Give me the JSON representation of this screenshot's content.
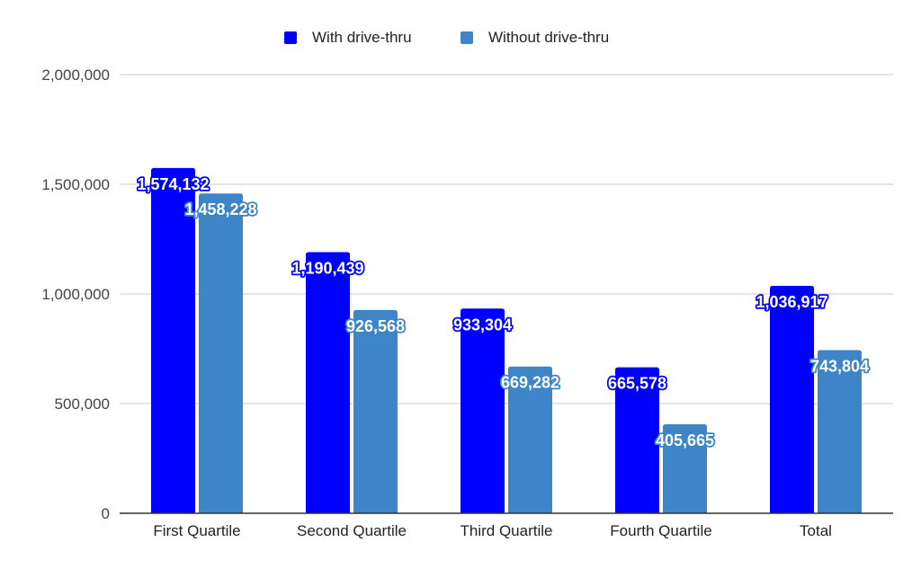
{
  "chart_data": {
    "type": "bar",
    "categories": [
      "First Quartile",
      "Second Quartile",
      "Third Quartile",
      "Fourth Quartile",
      "Total"
    ],
    "series": [
      {
        "name": "With drive-thru",
        "color": "#0000ff",
        "values": [
          1574132,
          1190439,
          933304,
          665578,
          1036917
        ],
        "labels": [
          "1,574,132",
          "1,190,439",
          "933,304",
          "665,578",
          "1,036,917"
        ]
      },
      {
        "name": "Without drive-thru",
        "color": "#3d85c6",
        "values": [
          1458228,
          926568,
          669282,
          405665,
          743804
        ],
        "labels": [
          "1,458,228",
          "926,568",
          "669,282",
          "405,665",
          "743,804"
        ]
      }
    ],
    "y_ticks": [
      0,
      500000,
      1000000,
      1500000,
      2000000
    ],
    "y_tick_labels": [
      "0",
      "500,000",
      "1,000,000",
      "1,500,000",
      "2,000,000"
    ],
    "ylim": [
      0,
      2000000
    ],
    "grid": true,
    "legend_position": "top-center",
    "title": "",
    "xlabel": "",
    "ylabel": ""
  }
}
